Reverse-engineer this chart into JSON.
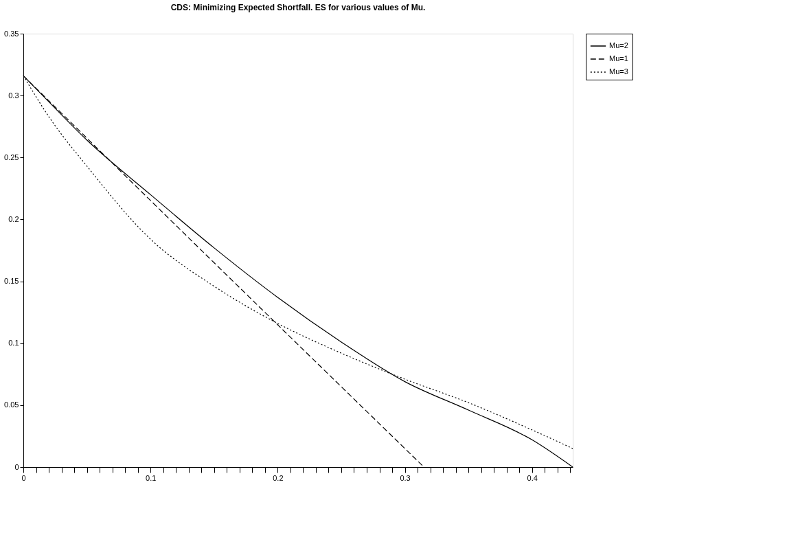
{
  "chart_data": {
    "type": "line",
    "title": "CDS: Minimizing Expected Shortfall. ES for various values of Mu.",
    "xlim": [
      0,
      0.432
    ],
    "ylim": [
      0,
      0.35
    ],
    "xticks": [
      0,
      {
        "value": 0.01,
        "label": null
      },
      {
        "value": 0.02,
        "label": null
      },
      {
        "value": 0.03,
        "label": null
      },
      {
        "value": 0.04,
        "label": null
      },
      {
        "value": 0.05,
        "label": null
      },
      {
        "value": 0.06,
        "label": null
      },
      {
        "value": 0.07,
        "label": null
      },
      {
        "value": 0.08,
        "label": null
      },
      {
        "value": 0.09,
        "label": null
      },
      0.1,
      {
        "value": 0.11,
        "label": null
      },
      {
        "value": 0.12,
        "label": null
      },
      {
        "value": 0.13,
        "label": null
      },
      {
        "value": 0.14,
        "label": null
      },
      {
        "value": 0.15,
        "label": null
      },
      {
        "value": 0.16,
        "label": null
      },
      {
        "value": 0.17,
        "label": null
      },
      {
        "value": 0.18,
        "label": null
      },
      {
        "value": 0.19,
        "label": null
      },
      0.2,
      {
        "value": 0.21,
        "label": null
      },
      {
        "value": 0.22,
        "label": null
      },
      {
        "value": 0.23,
        "label": null
      },
      {
        "value": 0.24,
        "label": null
      },
      {
        "value": 0.25,
        "label": null
      },
      {
        "value": 0.26,
        "label": null
      },
      {
        "value": 0.27,
        "label": null
      },
      {
        "value": 0.28,
        "label": null
      },
      {
        "value": 0.29,
        "label": null
      },
      0.3,
      {
        "value": 0.31,
        "label": null
      },
      {
        "value": 0.32,
        "label": null
      },
      {
        "value": 0.33,
        "label": null
      },
      {
        "value": 0.34,
        "label": null
      },
      {
        "value": 0.35,
        "label": null
      },
      {
        "value": 0.36,
        "label": null
      },
      {
        "value": 0.37,
        "label": null
      },
      {
        "value": 0.38,
        "label": null
      },
      {
        "value": 0.39,
        "label": null
      },
      0.4,
      {
        "value": 0.41,
        "label": null
      },
      {
        "value": 0.42,
        "label": null
      },
      {
        "value": 0.43,
        "label": null
      }
    ],
    "yticks": [
      0,
      0.05,
      0.1,
      0.15,
      0.2,
      0.25,
      0.3,
      0.35
    ],
    "grid": false,
    "legend": "right",
    "marker": "none",
    "series": [
      {
        "name": "Mu=2",
        "color": "#000000",
        "line_style": "solid",
        "x": [
          0,
          0.02,
          0.05,
          0.1,
          0.15,
          0.2,
          0.25,
          0.3,
          0.35,
          0.4,
          0.432
        ],
        "values": [
          0.316,
          0.295,
          0.264,
          0.22,
          0.177,
          0.137,
          0.101,
          0.069,
          0.046,
          0.022,
          0
        ]
      },
      {
        "name": "Mu=1",
        "color": "#000000",
        "line_style": "dashed",
        "x": [
          0,
          0.15,
          0.315
        ],
        "values": [
          0.316,
          0.165,
          0
        ]
      },
      {
        "name": "Mu=3",
        "color": "#000000",
        "line_style": "dotted",
        "x": [
          0,
          0.02,
          0.05,
          0.1,
          0.15,
          0.2,
          0.25,
          0.3,
          0.35,
          0.4,
          0.432
        ],
        "values": [
          0.316,
          0.283,
          0.243,
          0.184,
          0.146,
          0.116,
          0.092,
          0.071,
          0.052,
          0.03,
          0.015
        ]
      }
    ]
  }
}
